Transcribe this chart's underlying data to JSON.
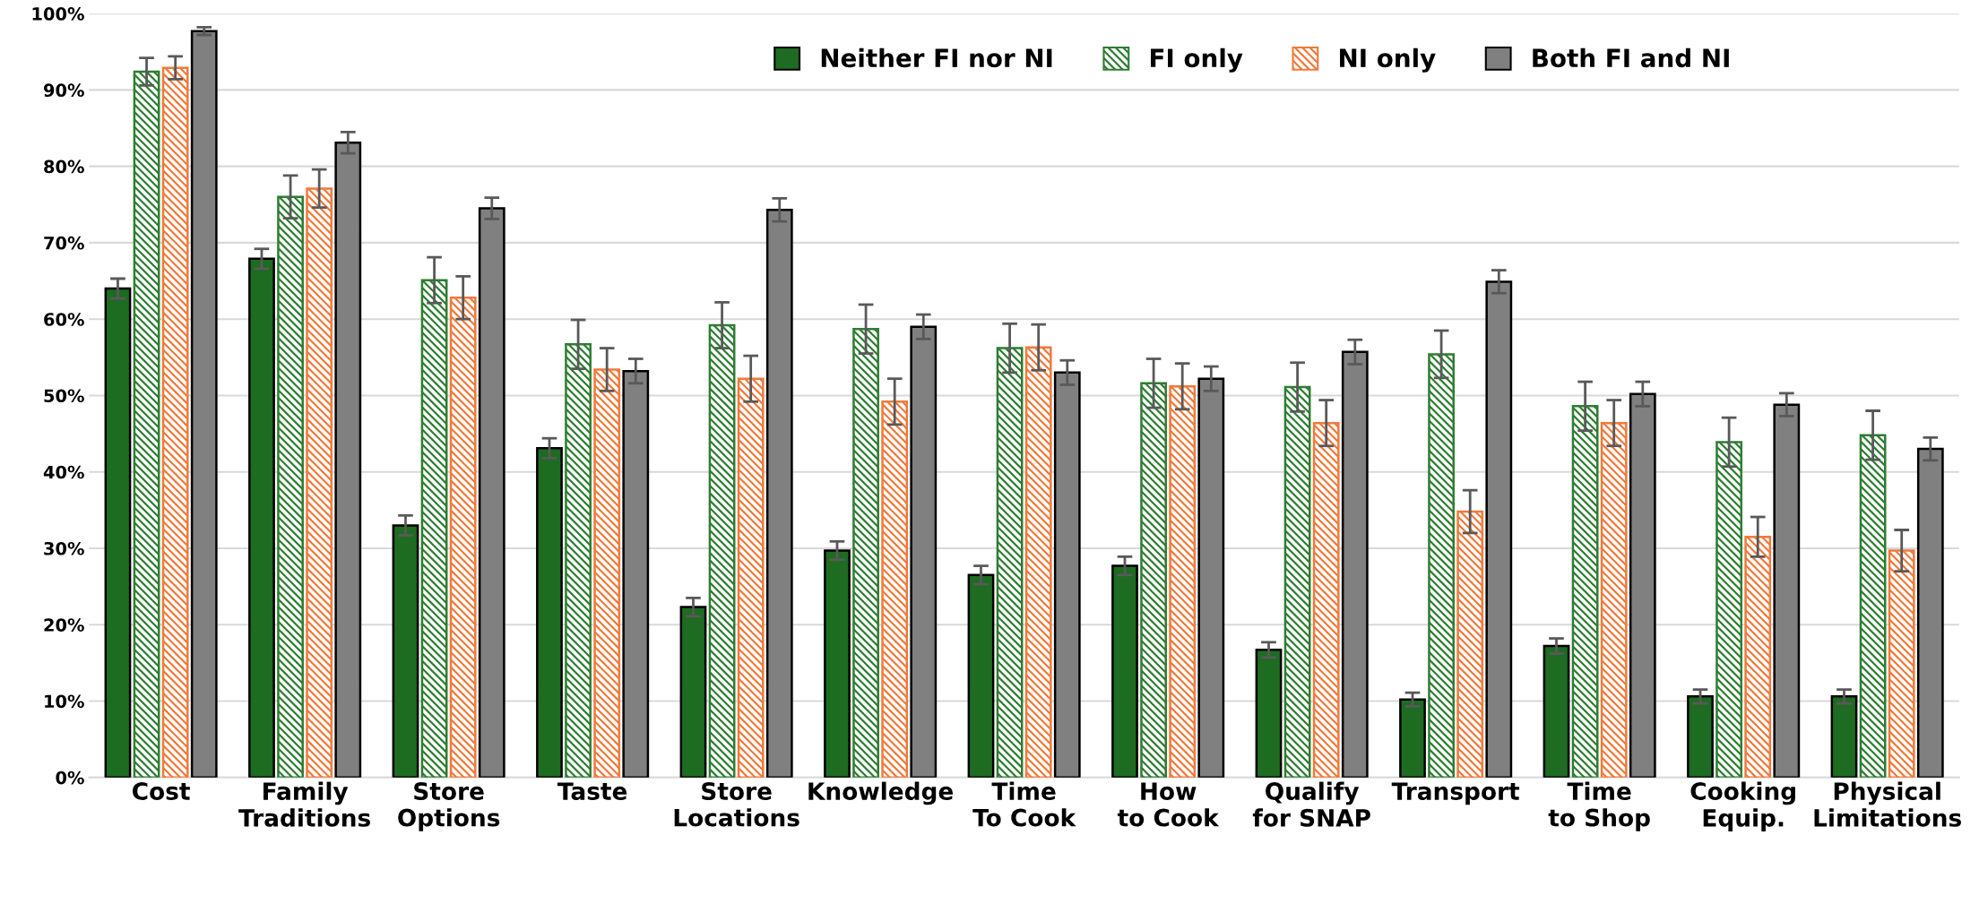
{
  "chart_data": {
    "type": "bar",
    "categories": [
      "Cost",
      "Family\nTraditions",
      "Store\nOptions",
      "Taste",
      "Store\nLocations",
      "Knowledge",
      "Time\nTo Cook",
      "How\nto Cook",
      "Qualify\nfor SNAP",
      "Transport",
      "Time\nto Shop",
      "Cooking\nEquip.",
      "Physical\nLimitations"
    ],
    "series": [
      {
        "name": "Neither FI nor NI",
        "color": "#1e6b22",
        "values": [
          64,
          67.9,
          33,
          43.1,
          22.3,
          29.7,
          26.5,
          27.7,
          16.7,
          10.2,
          17.2,
          10.6,
          10.6
        ],
        "errors": [
          1.3,
          1.3,
          1.3,
          1.3,
          1.2,
          1.2,
          1.2,
          1.2,
          1,
          0.9,
          1,
          0.9,
          0.9
        ]
      },
      {
        "name": "FI only",
        "color": "#2e7d32",
        "values": [
          92.4,
          76,
          65.1,
          56.7,
          59.2,
          58.7,
          56.2,
          51.6,
          51.1,
          55.4,
          48.6,
          43.9,
          44.8
        ],
        "errors": [
          1.8,
          2.8,
          3,
          3.2,
          3,
          3.2,
          3.2,
          3.2,
          3.2,
          3.1,
          3.2,
          3.2,
          3.2
        ]
      },
      {
        "name": "NI only",
        "color": "#f07a3c",
        "values": [
          92.9,
          77.1,
          62.8,
          53.4,
          52.2,
          49.2,
          56.3,
          51.2,
          46.4,
          34.8,
          46.4,
          31.5,
          29.7
        ],
        "errors": [
          1.5,
          2.5,
          2.8,
          2.8,
          3,
          3,
          3,
          3,
          3,
          2.8,
          3,
          2.6,
          2.7
        ]
      },
      {
        "name": "Both FI and NI",
        "color": "#808080",
        "values": [
          97.7,
          83.1,
          74.5,
          53.2,
          74.3,
          59,
          53,
          52.2,
          55.7,
          64.9,
          50.2,
          48.8,
          43
        ],
        "errors": [
          0.5,
          1.4,
          1.4,
          1.6,
          1.5,
          1.6,
          1.6,
          1.6,
          1.6,
          1.5,
          1.6,
          1.5,
          1.5
        ]
      }
    ],
    "ylim": [
      0,
      100
    ],
    "yticks": [
      {
        "value": 0,
        "label": "0%"
      },
      {
        "value": 10,
        "label": "10%"
      },
      {
        "value": 20,
        "label": "20%"
      },
      {
        "value": 30,
        "label": "30%"
      },
      {
        "value": 40,
        "label": "40%"
      },
      {
        "value": 50,
        "label": "50%"
      },
      {
        "value": 60,
        "label": "60%"
      },
      {
        "value": 70,
        "label": "70%"
      },
      {
        "value": 80,
        "label": "80%"
      },
      {
        "value": 90,
        "label": "90%"
      },
      {
        "value": 100,
        "label": "100%"
      }
    ],
    "grid": "y",
    "legend": "top right"
  }
}
